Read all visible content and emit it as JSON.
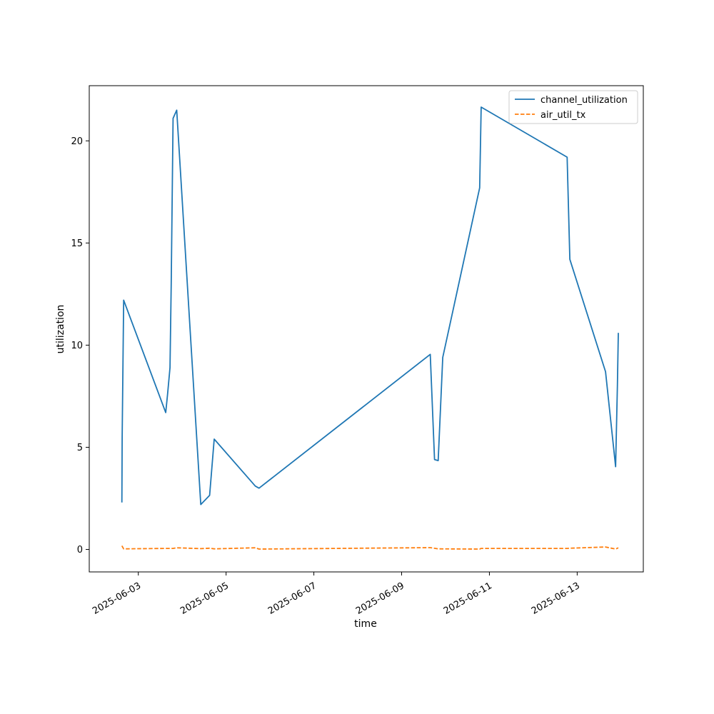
{
  "chart_data": {
    "type": "line",
    "xlabel": "time",
    "ylabel": "utilization",
    "x_ticks": [
      "2025-06-03",
      "2025-06-05",
      "2025-06-07",
      "2025-06-09",
      "2025-06-11",
      "2025-06-13"
    ],
    "y_ticks": [
      0,
      5,
      10,
      15,
      20
    ],
    "xlim": [
      "2025-06-01T21:10",
      "2025-06-14T12:10"
    ],
    "ylim": [
      -1.1,
      22.7
    ],
    "grid": false,
    "legend_position": "top-right",
    "series": [
      {
        "name": "channel_utilization",
        "color": "#1f77b4",
        "style": "solid",
        "points": [
          [
            "2025-06-02T15:00",
            2.3
          ],
          [
            "2025-06-02T15:10",
            5.5
          ],
          [
            "2025-06-02T16:00",
            12.2
          ],
          [
            "2025-06-03T15:00",
            6.7
          ],
          [
            "2025-06-03T16:00",
            7.6
          ],
          [
            "2025-06-03T17:20",
            8.9
          ],
          [
            "2025-06-03T18:00",
            13.0
          ],
          [
            "2025-06-03T19:00",
            21.1
          ],
          [
            "2025-06-03T21:00",
            21.5
          ],
          [
            "2025-06-04T10:10",
            2.2
          ],
          [
            "2025-06-04T15:00",
            2.65
          ],
          [
            "2025-06-04T17:30",
            5.4
          ],
          [
            "2025-06-05T16:00",
            3.1
          ],
          [
            "2025-06-05T18:00",
            3.0
          ],
          [
            "2025-06-09T15:40",
            9.55
          ],
          [
            "2025-06-09T18:00",
            4.4
          ],
          [
            "2025-06-09T20:00",
            4.35
          ],
          [
            "2025-06-09T22:30",
            9.4
          ],
          [
            "2025-06-10T18:40",
            17.7
          ],
          [
            "2025-06-10T19:30",
            21.65
          ],
          [
            "2025-06-12T18:30",
            19.2
          ],
          [
            "2025-06-12T20:00",
            14.2
          ],
          [
            "2025-06-13T15:30",
            8.7
          ],
          [
            "2025-06-13T21:00",
            4.05
          ],
          [
            "2025-06-13T22:00",
            8.0
          ],
          [
            "2025-06-13T22:30",
            10.6
          ]
        ]
      },
      {
        "name": "air_util_tx",
        "color": "#ff7f0e",
        "style": "dashed",
        "points": [
          [
            "2025-06-02T15:00",
            0.18
          ],
          [
            "2025-06-02T16:00",
            0.03
          ],
          [
            "2025-06-03T15:00",
            0.05
          ],
          [
            "2025-06-03T19:00",
            0.05
          ],
          [
            "2025-06-03T21:00",
            0.08
          ],
          [
            "2025-06-04T10:10",
            0.04
          ],
          [
            "2025-06-04T15:00",
            0.06
          ],
          [
            "2025-06-04T17:30",
            0.03
          ],
          [
            "2025-06-05T16:00",
            0.08
          ],
          [
            "2025-06-05T18:00",
            0.02
          ],
          [
            "2025-06-09T15:40",
            0.09
          ],
          [
            "2025-06-09T20:00",
            0.03
          ],
          [
            "2025-06-10T18:40",
            0.02
          ],
          [
            "2025-06-10T19:30",
            0.05
          ],
          [
            "2025-06-12T18:30",
            0.05
          ],
          [
            "2025-06-12T20:00",
            0.06
          ],
          [
            "2025-06-13T15:30",
            0.12
          ],
          [
            "2025-06-13T21:00",
            0.02
          ],
          [
            "2025-06-13T22:30",
            0.08
          ]
        ]
      }
    ]
  }
}
